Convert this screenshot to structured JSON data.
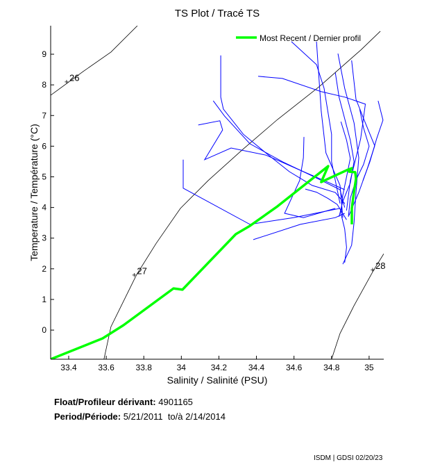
{
  "chart_data": {
    "type": "line",
    "title": "TS Plot / Tracé TS",
    "xlabel": "Salinity / Salinité (PSU)",
    "ylabel": "Temperature / Température (°C)",
    "xlim": [
      33.304,
      35.078
    ],
    "ylim": [
      -0.95,
      9.93
    ],
    "xticks": [
      33.4,
      33.6,
      33.8,
      34,
      34.2,
      34.4,
      34.6,
      34.8,
      35
    ],
    "xtick_labels": [
      "33.4",
      "33.6",
      "33.8",
      "34",
      "34.2",
      "34.4",
      "34.6",
      "34.8",
      "35"
    ],
    "yticks": [
      0,
      1,
      2,
      3,
      4,
      5,
      6,
      7,
      8,
      9
    ],
    "ytick_labels": [
      "0",
      "1",
      "2",
      "3",
      "4",
      "5",
      "6",
      "7",
      "8",
      "9"
    ],
    "grid": false,
    "legend": {
      "placement": "top-right",
      "entries": [
        "Most Recent / Dernier profil"
      ]
    },
    "colors": {
      "profiles": "#0000ff",
      "most_recent": "#00ff00",
      "density": "#000000"
    },
    "density_contours": [
      {
        "label": "26",
        "label_at": [
          33.4,
          8.1
        ],
        "points": [
          [
            33.304,
            7.66
          ],
          [
            33.478,
            8.44
          ],
          [
            33.625,
            9.07
          ],
          [
            33.766,
            9.93
          ]
        ]
      },
      {
        "label": "27",
        "label_at": [
          33.76,
          1.8
        ],
        "points": [
          [
            33.588,
            -0.95
          ],
          [
            33.625,
            0.11
          ],
          [
            33.68,
            0.79
          ],
          [
            33.762,
            1.81
          ],
          [
            33.866,
            2.83
          ],
          [
            33.995,
            3.97
          ],
          [
            34.143,
            4.88
          ],
          [
            34.328,
            5.9
          ],
          [
            34.512,
            6.87
          ],
          [
            34.734,
            7.94
          ],
          [
            34.956,
            9.14
          ],
          [
            35.06,
            9.75
          ]
        ]
      },
      {
        "label": "28",
        "label_at": [
          35.03,
          1.97
        ],
        "points": [
          [
            34.8,
            -0.95
          ],
          [
            34.845,
            -0.11
          ],
          [
            34.919,
            0.79
          ],
          [
            35.022,
            1.93
          ],
          [
            35.078,
            2.49
          ]
        ]
      }
    ],
    "profiles": [
      [
        [
          34.01,
          5.56
        ],
        [
          34.01,
          4.63
        ],
        [
          34.365,
          3.45
        ],
        [
          34.597,
          3.67
        ],
        [
          34.845,
          3.97
        ]
      ],
      [
        [
          34.409,
          8.28
        ],
        [
          34.538,
          8.21
        ],
        [
          34.745,
          7.78
        ],
        [
          34.871,
          7.6
        ],
        [
          34.98,
          7.37
        ],
        [
          34.955,
          6.24
        ],
        [
          34.9,
          4.88
        ],
        [
          34.88,
          3.9
        ]
      ],
      [
        [
          34.21,
          8.96
        ],
        [
          34.21,
          7.6
        ],
        [
          34.224,
          7.21
        ],
        [
          34.33,
          6.39
        ],
        [
          34.45,
          5.78
        ],
        [
          34.575,
          5.17
        ],
        [
          34.697,
          4.72
        ],
        [
          34.82,
          4.49
        ],
        [
          34.87,
          4.13
        ]
      ],
      [
        [
          34.17,
          7.48
        ],
        [
          34.23,
          6.98
        ],
        [
          34.365,
          6.08
        ],
        [
          34.54,
          5.49
        ],
        [
          34.697,
          5.03
        ],
        [
          34.845,
          4.58
        ],
        [
          34.87,
          4.0
        ]
      ],
      [
        [
          34.09,
          6.69
        ],
        [
          34.205,
          6.83
        ],
        [
          34.22,
          6.53
        ],
        [
          34.124,
          5.56
        ],
        [
          34.265,
          5.94
        ],
        [
          34.45,
          5.71
        ],
        [
          34.65,
          5.17
        ],
        [
          34.76,
          4.88
        ],
        [
          34.87,
          4.58
        ]
      ],
      [
        [
          34.653,
          6.3
        ],
        [
          34.65,
          5.62
        ],
        [
          34.63,
          4.88
        ],
        [
          34.55,
          3.81
        ],
        [
          34.65,
          3.67
        ],
        [
          34.82,
          3.97
        ]
      ],
      [
        [
          34.383,
          2.95
        ],
        [
          34.634,
          3.45
        ],
        [
          34.82,
          3.67
        ],
        [
          34.87,
          3.81
        ]
      ],
      [
        [
          34.586,
          9.41
        ],
        [
          34.72,
          8.66
        ],
        [
          34.76,
          7.89
        ],
        [
          34.8,
          6.39
        ],
        [
          34.8,
          5.49
        ],
        [
          34.82,
          4.88
        ],
        [
          34.845,
          4.13
        ]
      ],
      [
        [
          34.72,
          9.41
        ],
        [
          34.73,
          8.5
        ],
        [
          34.745,
          7.14
        ],
        [
          34.77,
          5.78
        ],
        [
          34.845,
          4.72
        ],
        [
          34.86,
          3.67
        ]
      ],
      [
        [
          34.834,
          9.02
        ],
        [
          34.87,
          7.89
        ],
        [
          34.92,
          6.76
        ],
        [
          34.945,
          5.62
        ],
        [
          34.93,
          4.49
        ],
        [
          34.92,
          3.51
        ],
        [
          34.907,
          2.77
        ],
        [
          34.86,
          2.15
        ]
      ],
      [
        [
          34.907,
          8.8
        ],
        [
          34.93,
          7.53
        ],
        [
          34.98,
          6.76
        ],
        [
          35.03,
          6.01
        ],
        [
          34.99,
          5.26
        ],
        [
          34.945,
          4.49
        ],
        [
          34.893,
          3.74
        ]
      ],
      [
        [
          35.048,
          7.48
        ],
        [
          35.074,
          6.85
        ],
        [
          35.04,
          6.24
        ],
        [
          35.004,
          5.49
        ],
        [
          34.967,
          4.88
        ]
      ],
      [
        [
          34.85,
          6.8
        ],
        [
          34.88,
          6.2
        ],
        [
          34.9,
          5.6
        ],
        [
          34.88,
          5.0
        ],
        [
          34.86,
          4.4
        ],
        [
          34.85,
          3.8
        ],
        [
          34.87,
          3.3
        ],
        [
          34.88,
          2.7
        ],
        [
          34.87,
          2.2
        ]
      ],
      [
        [
          34.95,
          7.2
        ],
        [
          34.97,
          6.6
        ],
        [
          35.0,
          6.0
        ],
        [
          34.97,
          5.4
        ],
        [
          34.93,
          4.9
        ],
        [
          34.9,
          4.3
        ],
        [
          34.89,
          3.7
        ]
      ],
      [
        [
          34.82,
          8.4
        ],
        [
          34.84,
          7.6
        ],
        [
          34.87,
          6.9
        ],
        [
          34.9,
          6.2
        ],
        [
          34.92,
          5.5
        ],
        [
          34.9,
          4.8
        ],
        [
          34.86,
          4.2
        ],
        [
          34.84,
          3.7
        ]
      ],
      [
        [
          34.66,
          4.6
        ],
        [
          34.72,
          4.5
        ],
        [
          34.78,
          4.3
        ],
        [
          34.83,
          4.1
        ],
        [
          34.86,
          3.8
        ],
        [
          34.88,
          3.6
        ]
      ]
    ],
    "most_recent": [
      [
        33.304,
        -0.95
      ],
      [
        33.581,
        -0.27
      ],
      [
        33.692,
        0.16
      ],
      [
        33.958,
        1.36
      ],
      [
        34.006,
        1.32
      ],
      [
        34.29,
        3.13
      ],
      [
        34.365,
        3.4
      ],
      [
        34.512,
        4.04
      ],
      [
        34.782,
        5.35
      ],
      [
        34.745,
        4.83
      ],
      [
        34.815,
        5.03
      ],
      [
        34.882,
        5.22
      ],
      [
        34.908,
        5.28
      ],
      [
        34.893,
        5.17
      ],
      [
        34.926,
        5.15
      ],
      [
        34.93,
        4.94
      ],
      [
        34.919,
        4.49
      ],
      [
        34.908,
        3.97
      ],
      [
        34.908,
        3.45
      ]
    ]
  },
  "info": {
    "float_label": "Float/Profileur dérivant:",
    "float_id": "4901165",
    "period_label": "Period/Période:",
    "period_start": "5/21/2011",
    "period_sep": "to/à",
    "period_end": "2/14/2014"
  },
  "credit": "ISDM | GDSI  02/20/23"
}
